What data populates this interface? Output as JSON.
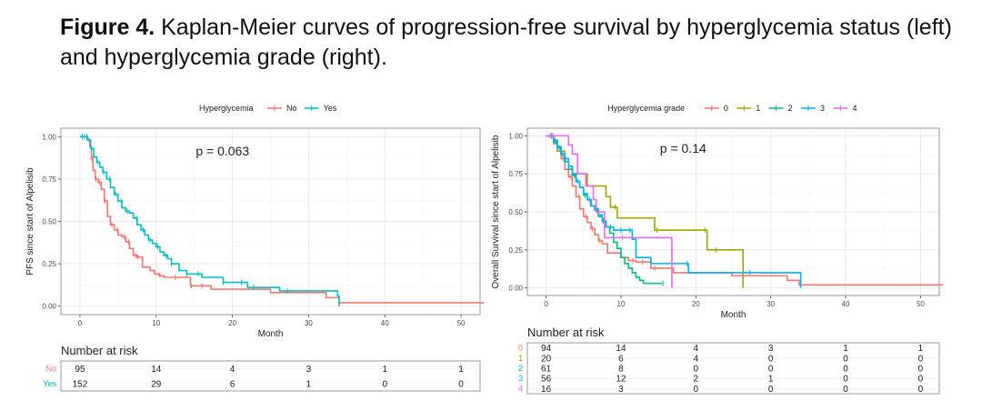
{
  "caption": {
    "label": "Figure 4.",
    "text": " Kaplan-Meier curves of progression-free survival by hyperglycemia status (left) and hyperglycemia grade (right)."
  },
  "chart_data": [
    {
      "type": "line",
      "subtype": "kaplan-meier",
      "title": "",
      "legend_title": "Hyperglycemia",
      "legend_position": "top",
      "xlabel": "Month",
      "ylabel": "PFS since start of Alpelisib",
      "xlim": [
        -2.5,
        52.5
      ],
      "ylim": [
        -0.05,
        1.05
      ],
      "xticks": [
        0,
        10,
        20,
        30,
        40,
        50
      ],
      "yticks": [
        "0.00",
        "0.25",
        "0.50",
        "0.75",
        "1.00"
      ],
      "grid": true,
      "annotation": "p = 0.063",
      "series": [
        {
          "name": "No",
          "color": "#F8766D",
          "x": [
            0,
            1.0,
            1.3,
            1.5,
            1.7,
            2.0,
            2.4,
            2.8,
            3.2,
            3.6,
            4.0,
            4.5,
            5.0,
            5.5,
            6.0,
            6.5,
            7.0,
            7.5,
            8.2,
            8.7,
            9.2,
            9.8,
            10.4,
            11.0,
            12.0,
            14.5,
            17.2,
            25.0,
            32.3,
            34.0,
            53
          ],
          "y": [
            1.0,
            0.98,
            0.94,
            0.87,
            0.8,
            0.75,
            0.73,
            0.69,
            0.62,
            0.53,
            0.48,
            0.45,
            0.42,
            0.41,
            0.38,
            0.34,
            0.3,
            0.29,
            0.23,
            0.23,
            0.21,
            0.19,
            0.18,
            0.17,
            0.17,
            0.12,
            0.1,
            0.08,
            0.05,
            0.02,
            0.02
          ],
          "censor_x": [
            1.2,
            1.6,
            2.1,
            2.6,
            3.3,
            4.2,
            4.9,
            5.8,
            6.4,
            7.3,
            7.6,
            10.5,
            12.5,
            14.6,
            16.0
          ]
        },
        {
          "name": "Yes",
          "color": "#00BFC4",
          "x": [
            0,
            1.0,
            1.4,
            1.8,
            2.2,
            2.6,
            3.0,
            3.5,
            4.0,
            4.5,
            5.0,
            5.5,
            6.0,
            6.5,
            7.0,
            7.5,
            8.0,
            8.5,
            9.0,
            9.5,
            10.0,
            10.5,
            11.0,
            11.5,
            12.0,
            13.0,
            14.0,
            16.0,
            18.8,
            22.0,
            26.2,
            33.8,
            34.0
          ],
          "y": [
            1.0,
            0.98,
            0.93,
            0.88,
            0.85,
            0.82,
            0.79,
            0.75,
            0.7,
            0.66,
            0.62,
            0.58,
            0.56,
            0.55,
            0.52,
            0.48,
            0.45,
            0.42,
            0.39,
            0.37,
            0.35,
            0.32,
            0.3,
            0.28,
            0.25,
            0.21,
            0.19,
            0.17,
            0.14,
            0.11,
            0.09,
            0.06,
            0.0
          ],
          "censor_x": [
            0.3,
            0.6,
            0.9,
            1.5,
            2.3,
            3.1,
            3.9,
            4.7,
            5.4,
            6.2,
            7.4,
            8.3,
            9.2,
            10.2,
            11.3,
            12.0,
            14.0,
            15.5,
            18.8,
            21.2,
            22.8,
            27.2
          ]
        }
      ],
      "risk_table": {
        "title": "Number at risk",
        "times": [
          0,
          10,
          20,
          30,
          40,
          50
        ],
        "rows": [
          {
            "label": "No",
            "color": "#F8766D",
            "values": [
              95,
              14,
              4,
              3,
              1,
              1
            ]
          },
          {
            "label": "Yes",
            "color": "#00BFC4",
            "values": [
              152,
              29,
              6,
              1,
              0,
              0
            ]
          }
        ]
      }
    },
    {
      "type": "line",
      "subtype": "kaplan-meier",
      "title": "",
      "legend_title": "Hyperglycemia grade",
      "legend_position": "top",
      "xlabel": "Month",
      "ylabel": "Overall Survival since start of Alpelisib",
      "xlim": [
        -2.5,
        52.5
      ],
      "ylim": [
        -0.05,
        1.05
      ],
      "xticks": [
        0,
        10,
        20,
        30,
        40,
        50
      ],
      "yticks": [
        "0.00",
        "0.25",
        "0.50",
        "0.75",
        "1.00"
      ],
      "grid": true,
      "annotation": "p = 0.14",
      "series": [
        {
          "name": "0",
          "color": "#F8766D",
          "x": [
            0,
            1.0,
            1.5,
            2.0,
            2.5,
            3.0,
            3.5,
            4.0,
            4.5,
            5.0,
            5.5,
            6.0,
            6.5,
            7.0,
            7.5,
            8.2,
            9.2,
            10.0,
            11.0,
            12.0,
            14.0,
            17.0,
            24.8,
            32.2,
            33.8,
            53
          ],
          "y": [
            1.0,
            0.97,
            0.92,
            0.85,
            0.78,
            0.73,
            0.67,
            0.6,
            0.52,
            0.47,
            0.43,
            0.39,
            0.35,
            0.31,
            0.29,
            0.23,
            0.23,
            0.2,
            0.18,
            0.17,
            0.13,
            0.1,
            0.08,
            0.05,
            0.02,
            0.02
          ],
          "censor_x": [
            1.2,
            1.8,
            2.3,
            3.3,
            4.4,
            5.3,
            6.2,
            7.2,
            11.6,
            12.9,
            14.5
          ]
        },
        {
          "name": "1",
          "color": "#A3A500",
          "x": [
            0,
            1.0,
            1.5,
            2.5,
            3.0,
            3.5,
            5.5,
            8.0,
            8.6,
            9.5,
            14.5,
            21.5,
            26.3
          ],
          "y": [
            1.0,
            0.95,
            0.9,
            0.85,
            0.8,
            0.75,
            0.67,
            0.6,
            0.53,
            0.46,
            0.38,
            0.25,
            0.0
          ],
          "censor_x": [
            0.8,
            9.2,
            14.8,
            21.2,
            22.7
          ]
        },
        {
          "name": "2",
          "color": "#00BF7D",
          "x": [
            0,
            1.0,
            1.5,
            2.0,
            2.5,
            3.0,
            3.5,
            4.0,
            4.5,
            5.0,
            5.5,
            6.0,
            6.5,
            7.0,
            7.5,
            8.0,
            8.5,
            9.0,
            9.5,
            10.0,
            10.5,
            11.0,
            11.5,
            12.0,
            12.5,
            13.0,
            15.5
          ],
          "y": [
            1.0,
            0.97,
            0.93,
            0.88,
            0.83,
            0.78,
            0.74,
            0.7,
            0.66,
            0.61,
            0.58,
            0.54,
            0.51,
            0.47,
            0.44,
            0.4,
            0.36,
            0.3,
            0.26,
            0.2,
            0.16,
            0.13,
            0.1,
            0.07,
            0.05,
            0.03,
            0.03
          ],
          "censor_x": [
            0.7,
            2.2,
            3.8,
            5.2,
            6.8,
            7.7,
            15.6
          ]
        },
        {
          "name": "3",
          "color": "#00B0F6",
          "x": [
            0,
            1.0,
            1.5,
            2.0,
            2.5,
            3.0,
            3.5,
            4.0,
            4.5,
            5.0,
            5.5,
            6.0,
            6.5,
            7.0,
            7.5,
            8.0,
            9.0,
            11.5,
            12.0,
            14.0,
            19.0,
            34.0
          ],
          "y": [
            1.0,
            0.96,
            0.92,
            0.88,
            0.85,
            0.8,
            0.75,
            0.7,
            0.66,
            0.62,
            0.58,
            0.54,
            0.52,
            0.48,
            0.44,
            0.4,
            0.38,
            0.32,
            0.2,
            0.16,
            0.1,
            0.0
          ],
          "censor_x": [
            1.3,
            2.6,
            4.2,
            5.8,
            7.6,
            8.6,
            10.0,
            11.2,
            18.8,
            27.2
          ]
        },
        {
          "name": "4",
          "color": "#E76BF3",
          "x": [
            0,
            3.0,
            3.5,
            4.2,
            5.3,
            6.3,
            6.7,
            7.8,
            16.8
          ],
          "y": [
            1.0,
            0.94,
            0.88,
            0.75,
            0.67,
            0.58,
            0.5,
            0.33,
            0.0
          ],
          "censor_x": [
            0.5,
            1.0,
            10.2
          ]
        }
      ],
      "risk_table": {
        "title": "Number at risk",
        "times": [
          0,
          10,
          20,
          30,
          40,
          50
        ],
        "rows": [
          {
            "label": "0",
            "color": "#F8766D",
            "values": [
              94,
              14,
              4,
              3,
              1,
              1
            ]
          },
          {
            "label": "1",
            "color": "#A3A500",
            "values": [
              20,
              6,
              4,
              0,
              0,
              0
            ]
          },
          {
            "label": "2",
            "color": "#00BF7D",
            "values": [
              61,
              8,
              0,
              0,
              0,
              0
            ]
          },
          {
            "label": "3",
            "color": "#00B0F6",
            "values": [
              56,
              12,
              2,
              1,
              0,
              0
            ]
          },
          {
            "label": "4",
            "color": "#E76BF3",
            "values": [
              16,
              3,
              0,
              0,
              0,
              0
            ]
          }
        ]
      }
    }
  ]
}
